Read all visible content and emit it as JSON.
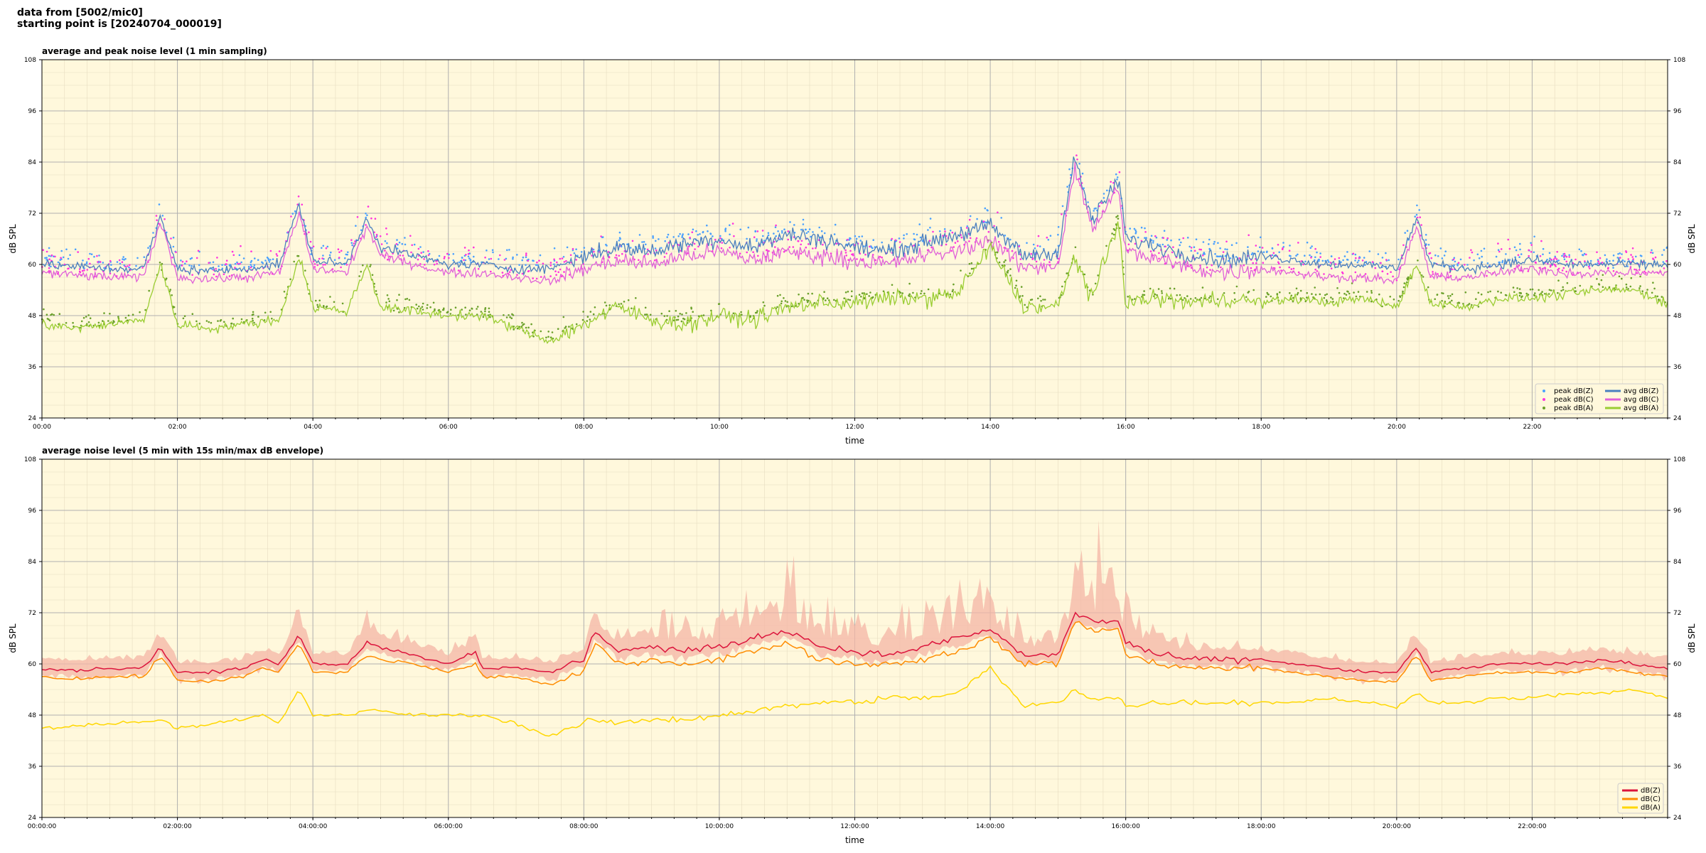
{
  "header": {
    "line1": "data from [5002/mic0]",
    "line2": "starting point is [20240704_000019]"
  },
  "colors": {
    "plot_bg": "#fff8dc",
    "major_grid": "#b0b0b0",
    "minor_grid": "#e6dcc0",
    "avg_z": "#4a7fbf",
    "avg_c": "#e060d8",
    "avg_a": "#9acd32",
    "peak_z": "#4aa0ff",
    "peak_c": "#ff33dd",
    "peak_a": "#6aa02a",
    "dbz": "#dc143c",
    "dbc": "#ff8c00",
    "dba": "#ffd700",
    "envelope": "#f4b6a6"
  },
  "chart_data": [
    {
      "type": "line",
      "title": "average and peak noise level (1 min sampling)",
      "xlabel": "time",
      "ylabel": "dB SPL",
      "ylim": [
        24,
        108
      ],
      "yticks": [
        "24",
        "36",
        "48",
        "60",
        "72",
        "84",
        "96",
        "108"
      ],
      "xlim_hours": [
        0,
        24
      ],
      "xticks": [
        "00:00",
        "02:00",
        "04:00",
        "06:00",
        "08:00",
        "10:00",
        "12:00",
        "14:00",
        "16:00",
        "18:00",
        "20:00",
        "22:00"
      ],
      "grid": true,
      "legend_position": "bottom-right",
      "legend": [
        "peak dB(Z)",
        "peak dB(C)",
        "peak dB(A)",
        "avg dB(Z)",
        "avg dB(C)",
        "avg dB(A)"
      ],
      "series": [
        {
          "name": "avg dB(Z)",
          "color_key": "avg_z",
          "style": "line",
          "x": [
            0,
            0.5,
            1,
            1.5,
            1.75,
            2,
            2.5,
            3,
            3.5,
            3.8,
            4,
            4.5,
            4.8,
            5,
            5.5,
            6,
            6.5,
            7,
            7.5,
            8,
            8.5,
            9,
            9.5,
            10,
            10.5,
            11,
            11.5,
            12,
            12.5,
            13,
            13.5,
            14,
            14.5,
            15,
            15.25,
            15.5,
            15.9,
            16,
            16.5,
            17,
            17.5,
            18,
            18.5,
            19,
            19.5,
            20,
            20.3,
            20.5,
            21,
            21.5,
            22,
            22.5,
            23,
            23.5,
            24
          ],
          "y": [
            60,
            59.5,
            59,
            59,
            71,
            59,
            58.5,
            59,
            60,
            74,
            61,
            60,
            71,
            64,
            62,
            60,
            60,
            59,
            59,
            62,
            64,
            63,
            65,
            66,
            64,
            67,
            66,
            64,
            63,
            65,
            67,
            69,
            62,
            63,
            85,
            70,
            80,
            66,
            64,
            62,
            61,
            62,
            61,
            60,
            60,
            59,
            71,
            60,
            59,
            60,
            61,
            60,
            60,
            60,
            60
          ]
        },
        {
          "name": "avg dB(C)",
          "color_key": "avg_c",
          "style": "line",
          "x": [
            0,
            0.5,
            1,
            1.5,
            1.75,
            2,
            2.5,
            3,
            3.5,
            3.8,
            4,
            4.5,
            4.8,
            5,
            5.5,
            6,
            6.5,
            7,
            7.5,
            8,
            8.5,
            9,
            9.5,
            10,
            10.5,
            11,
            11.5,
            12,
            12.5,
            13,
            13.5,
            14,
            14.5,
            15,
            15.25,
            15.5,
            15.9,
            16,
            16.5,
            17,
            17.5,
            18,
            18.5,
            19,
            19.5,
            20,
            20.3,
            20.5,
            21,
            21.5,
            22,
            22.5,
            23,
            23.5,
            24
          ],
          "y": [
            58,
            57.5,
            57,
            57,
            70,
            57,
            56.5,
            57,
            58,
            72,
            59,
            58,
            69,
            62,
            60,
            58,
            58,
            57,
            56,
            59,
            61,
            60,
            62,
            63,
            61,
            63,
            62,
            61,
            60,
            62,
            63,
            66,
            59,
            60,
            83,
            68,
            78,
            63,
            61,
            59,
            58,
            59,
            58,
            57,
            57,
            56,
            69,
            57,
            57,
            58,
            59,
            58,
            58,
            58,
            58
          ]
        },
        {
          "name": "avg dB(A)",
          "color_key": "avg_a",
          "style": "line",
          "x": [
            0,
            0.5,
            1,
            1.5,
            1.75,
            2,
            2.5,
            3,
            3.5,
            3.8,
            4,
            4.5,
            4.8,
            5,
            5.5,
            6,
            6.5,
            7,
            7.5,
            8,
            8.5,
            9,
            9.5,
            10,
            10.5,
            11,
            11.5,
            12,
            12.5,
            13,
            13.5,
            14,
            14.5,
            15,
            15.25,
            15.5,
            15.9,
            16,
            16.5,
            17,
            17.5,
            18,
            18.5,
            19,
            19.5,
            20,
            20.3,
            20.5,
            21,
            21.5,
            22,
            22.5,
            23,
            23.5,
            24
          ],
          "y": [
            46,
            45,
            46,
            47,
            60,
            46,
            45,
            46,
            47,
            62,
            50,
            49,
            60,
            50,
            49,
            48,
            48,
            45,
            42,
            46,
            50,
            47,
            46,
            48,
            47,
            50,
            51,
            51,
            52,
            52,
            53,
            64,
            50,
            50,
            62,
            52,
            70,
            51,
            52,
            51,
            52,
            51,
            52,
            51,
            52,
            50,
            60,
            51,
            50,
            52,
            52,
            53,
            54,
            54,
            51
          ]
        },
        {
          "name": "peak dB(Z)",
          "color_key": "peak_z",
          "style": "points",
          "offset_from": "avg dB(Z)",
          "offset": 4
        },
        {
          "name": "peak dB(C)",
          "color_key": "peak_c",
          "style": "points",
          "offset_from": "avg dB(C)",
          "offset": 6
        },
        {
          "name": "peak dB(A)",
          "color_key": "peak_a",
          "style": "points",
          "offset_from": "avg dB(A)",
          "offset": 3
        }
      ]
    },
    {
      "type": "line",
      "title": "average noise level (5 min with 15s min/max dB envelope)",
      "xlabel": "time",
      "ylabel": "dB SPL",
      "ylim": [
        24,
        108
      ],
      "yticks": [
        "24",
        "36",
        "48",
        "60",
        "72",
        "84",
        "96",
        "108"
      ],
      "xlim_hours": [
        0,
        24
      ],
      "xticks": [
        "00:00:00",
        "02:00:00",
        "04:00:00",
        "06:00:00",
        "08:00:00",
        "10:00:00",
        "12:00:00",
        "14:00:00",
        "16:00:00",
        "18:00:00",
        "20:00:00",
        "22:00:00"
      ],
      "grid": true,
      "legend_position": "bottom-right",
      "legend": [
        "dB(Z)",
        "dB(C)",
        "dB(A)"
      ],
      "series": [
        {
          "name": "dB(Z)",
          "color_key": "dbz",
          "style": "line",
          "x": [
            0,
            0.5,
            1,
            1.5,
            1.75,
            2,
            2.5,
            3,
            3.25,
            3.5,
            3.8,
            4,
            4.5,
            4.8,
            5,
            5.5,
            6,
            6.4,
            6.5,
            7,
            7.5,
            8,
            8.15,
            8.5,
            9,
            9.5,
            10,
            10.5,
            11,
            11.5,
            12,
            12.5,
            13,
            13.5,
            14,
            14.5,
            15,
            15.25,
            15.5,
            15.9,
            16,
            16.5,
            17,
            17.5,
            18,
            18.5,
            19,
            19.5,
            20,
            20.3,
            20.5,
            21,
            21.5,
            22,
            22.5,
            23,
            23.5,
            24
          ],
          "y": [
            59,
            58.5,
            59,
            59,
            64,
            58,
            58,
            59,
            61,
            60,
            67,
            60,
            60,
            65,
            64,
            62,
            60,
            63,
            59,
            59,
            58,
            61,
            68,
            63,
            64,
            63,
            64,
            66,
            68,
            64,
            63,
            62,
            64,
            66,
            68,
            62,
            62,
            72,
            70,
            70,
            65,
            62,
            61,
            61,
            61,
            60,
            59,
            58,
            58,
            64,
            58,
            59,
            60,
            60,
            60,
            61,
            60,
            59
          ]
        },
        {
          "name": "dB(C)",
          "color_key": "dbc",
          "style": "line",
          "x": [
            0,
            0.5,
            1,
            1.5,
            1.75,
            2,
            2.5,
            3,
            3.25,
            3.5,
            3.8,
            4,
            4.5,
            4.8,
            5,
            5.5,
            6,
            6.4,
            6.5,
            7,
            7.5,
            8,
            8.15,
            8.5,
            9,
            9.5,
            10,
            10.5,
            11,
            11.5,
            12,
            12.5,
            13,
            13.5,
            14,
            14.5,
            15,
            15.25,
            15.5,
            15.9,
            16,
            16.5,
            17,
            17.5,
            18,
            18.5,
            19,
            19.5,
            20,
            20.3,
            20.5,
            21,
            21.5,
            22,
            22.5,
            23,
            23.5,
            24
          ],
          "y": [
            57,
            56.5,
            57,
            57,
            62,
            56,
            56,
            57,
            59,
            58,
            65,
            58,
            58,
            62,
            61,
            60,
            58,
            60,
            57,
            57,
            55,
            58,
            65,
            60,
            61,
            60,
            61,
            63,
            65,
            61,
            60,
            60,
            61,
            63,
            66,
            60,
            60,
            70,
            68,
            68,
            62,
            60,
            59,
            59,
            59,
            58,
            57,
            56,
            56,
            62,
            56,
            57,
            58,
            58,
            58,
            59,
            58,
            57
          ]
        },
        {
          "name": "dB(A)",
          "color_key": "dba",
          "style": "line",
          "x": [
            0,
            0.5,
            1,
            1.5,
            1.75,
            2,
            2.5,
            3,
            3.25,
            3.5,
            3.8,
            4,
            4.5,
            4.8,
            5,
            5.5,
            6,
            6.4,
            6.5,
            7,
            7.5,
            8,
            8.15,
            8.5,
            9,
            9.5,
            10,
            10.5,
            11,
            11.5,
            12,
            12.5,
            13,
            13.5,
            14,
            14.5,
            15,
            15.25,
            15.5,
            15.9,
            16,
            16.5,
            17,
            17.5,
            18,
            18.5,
            19,
            19.5,
            20,
            20.3,
            20.5,
            21,
            21.5,
            22,
            22.5,
            23,
            23.5,
            24
          ],
          "y": [
            45,
            45.5,
            46,
            46.5,
            47,
            45,
            46,
            47,
            48,
            46,
            54,
            48,
            48,
            49,
            49,
            48,
            48,
            48,
            48,
            46,
            43,
            46,
            47,
            46,
            47,
            47,
            48,
            49,
            50,
            51,
            51,
            52,
            52,
            53,
            59,
            50,
            51,
            54,
            52,
            52,
            50,
            51,
            51,
            51,
            51,
            51,
            52,
            51,
            50,
            53,
            51,
            51,
            52,
            52,
            53,
            53,
            54,
            52
          ]
        },
        {
          "name": "envelope",
          "color_key": "envelope",
          "style": "band",
          "offset_from": "dB(Z)",
          "spread": 10
        }
      ]
    }
  ]
}
